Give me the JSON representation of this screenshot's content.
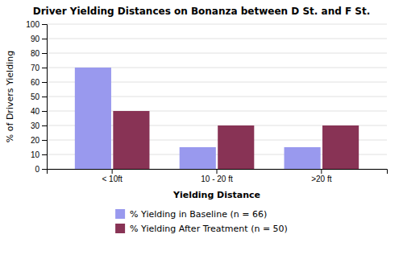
{
  "chart_data": {
    "type": "bar",
    "title": "Driver Yielding Distances on Bonanza between D St. and F St.",
    "xlabel": "Yielding Distance",
    "ylabel": "% of Drivers Yielding",
    "categories": [
      "< 10ft",
      "10 - 20 ft",
      ">20 ft"
    ],
    "series": [
      {
        "name": "% Yielding in Baseline (n = 66)",
        "color": "#9999EE",
        "values": [
          70,
          15,
          15
        ]
      },
      {
        "name": "% Yielding After Treatment (n = 50)",
        "color": "#883355",
        "values": [
          40,
          30,
          30
        ]
      }
    ],
    "ylim": [
      0,
      100
    ],
    "yticks": [
      0,
      10,
      20,
      30,
      40,
      50,
      60,
      70,
      80,
      90,
      100
    ],
    "grid": true,
    "legend": "bottom"
  }
}
